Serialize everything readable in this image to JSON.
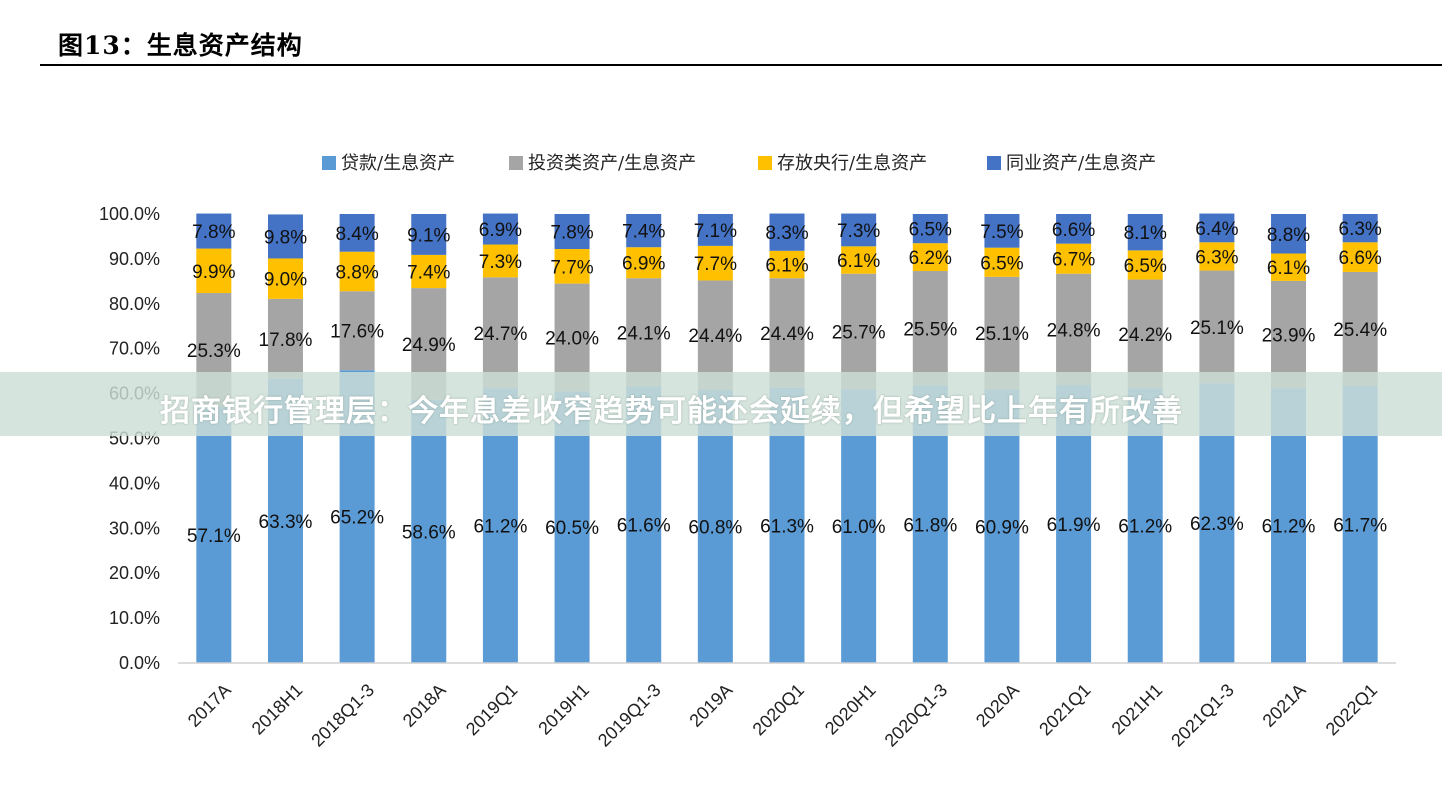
{
  "header": {
    "figure_title": "图13：生息资产结构"
  },
  "banner": {
    "text": "招商银行管理层：今年息差收窄趋势可能还会延续，但希望比上年有所改善"
  },
  "colors": {
    "loans": "#5b9bd5",
    "investments": "#a5a5a5",
    "central_bank": "#ffc000",
    "interbank": "#4472c4"
  },
  "chart_data": {
    "type": "bar",
    "stacked": true,
    "title": "",
    "xlabel": "",
    "ylabel": "",
    "ylim": [
      0,
      100
    ],
    "yticks": [
      "0.0%",
      "10.0%",
      "20.0%",
      "30.0%",
      "40.0%",
      "50.0%",
      "60.0%",
      "70.0%",
      "80.0%",
      "90.0%",
      "100.0%"
    ],
    "legend_position": "top",
    "grid": false,
    "categories": [
      "2017A",
      "2018H1",
      "2018Q1-3",
      "2018A",
      "2019Q1",
      "2019H1",
      "2019Q1-3",
      "2019A",
      "2020Q1",
      "2020H1",
      "2020Q1-3",
      "2020A",
      "2021Q1",
      "2021H1",
      "2021Q1-3",
      "2021A",
      "2022Q1"
    ],
    "series": [
      {
        "name": "贷款/生息资产",
        "color": "#5b9bd5",
        "values": [
          57.1,
          63.3,
          65.2,
          58.6,
          61.2,
          60.5,
          61.6,
          60.8,
          61.3,
          61.0,
          61.8,
          60.9,
          61.9,
          61.2,
          62.3,
          61.2,
          61.7
        ],
        "labels": [
          "57.1%",
          "63.3%",
          "65.2%",
          "58.6%",
          "61.2%",
          "60.5%",
          "61.6%",
          "60.8%",
          "61.3%",
          "61.0%",
          "61.8%",
          "60.9%",
          "61.9%",
          "61.2%",
          "62.3%",
          "61.2%",
          "61.7%"
        ]
      },
      {
        "name": "投资类资产/生息资产",
        "color": "#a5a5a5",
        "values": [
          25.3,
          17.8,
          17.6,
          24.9,
          24.7,
          24.0,
          24.1,
          24.4,
          24.4,
          25.7,
          25.5,
          25.1,
          24.8,
          24.2,
          25.1,
          23.9,
          25.4
        ],
        "labels": [
          "25.3%",
          "17.8%",
          "17.6%",
          "24.9%",
          "24.7%",
          "24.0%",
          "24.1%",
          "24.4%",
          "24.4%",
          "25.7%",
          "25.5%",
          "25.1%",
          "24.8%",
          "24.2%",
          "25.1%",
          "23.9%",
          "25.4%"
        ]
      },
      {
        "name": "存放央行/生息资产",
        "color": "#ffc000",
        "values": [
          9.9,
          9.0,
          8.8,
          7.4,
          7.3,
          7.7,
          6.9,
          7.7,
          6.1,
          6.1,
          6.2,
          6.5,
          6.7,
          6.5,
          6.3,
          6.1,
          6.6
        ],
        "labels": [
          "9.9%",
          "9.0%",
          "8.8%",
          "7.4%",
          "7.3%",
          "7.7%",
          "6.9%",
          "7.7%",
          "6.1%",
          "6.1%",
          "6.2%",
          "6.5%",
          "6.7%",
          "6.5%",
          "6.3%",
          "6.1%",
          "6.6%"
        ]
      },
      {
        "name": "同业资产/生息资产",
        "color": "#4472c4",
        "values": [
          7.8,
          9.8,
          8.4,
          9.1,
          6.9,
          7.8,
          7.4,
          7.1,
          8.3,
          7.3,
          6.5,
          7.5,
          6.6,
          8.1,
          6.4,
          8.8,
          6.3
        ],
        "labels": [
          "7.8%",
          "9.8%",
          "8.4%",
          "9.1%",
          "6.9%",
          "7.8%",
          "7.4%",
          "7.1%",
          "8.3%",
          "7.3%",
          "6.5%",
          "7.5%",
          "6.6%",
          "8.1%",
          "6.4%",
          "8.8%",
          "6.3%"
        ]
      }
    ]
  }
}
